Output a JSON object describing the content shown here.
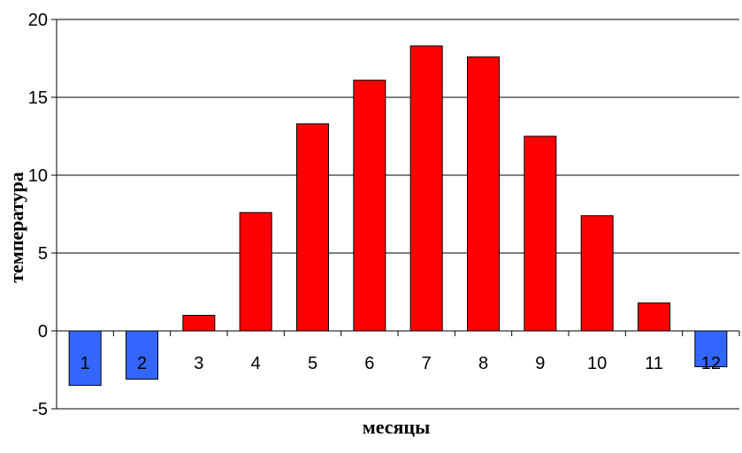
{
  "chart_data": {
    "type": "bar",
    "title": "",
    "xlabel": "месяцы",
    "ylabel": "температура",
    "categories": [
      "1",
      "2",
      "3",
      "4",
      "5",
      "6",
      "7",
      "8",
      "9",
      "10",
      "11",
      "12"
    ],
    "values": [
      -3.5,
      -3.1,
      1.0,
      7.6,
      13.3,
      16.1,
      18.3,
      17.6,
      12.5,
      7.4,
      1.8,
      -2.3
    ],
    "ylim": [
      -5,
      20
    ],
    "yticks": [
      -5,
      0,
      5,
      10,
      15,
      20
    ],
    "grid": true,
    "legend": "none",
    "colors": {
      "positive": "#ff0000",
      "negative": "#3366ff",
      "outline": "#000000",
      "gridline": "#000000"
    }
  }
}
